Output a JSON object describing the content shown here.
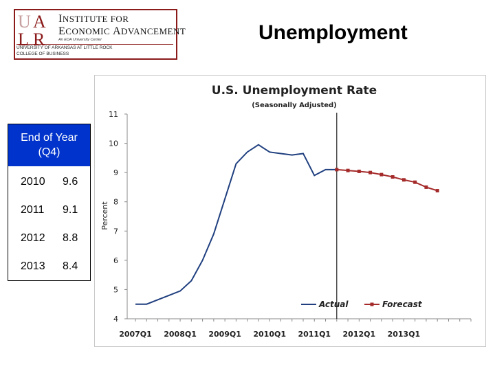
{
  "logo": {
    "line1_big": "I",
    "line1_rest": "NSTITUTE FOR",
    "line2_big1": "E",
    "line2_rest1": "CONOMIC ",
    "line2_big2": "A",
    "line2_rest2": "DVANCEMENT",
    "tagline": "An EDA University Center",
    "line3": "UNIVERSITY OF ARKANSAS AT LITTLE ROCK",
    "line4": "COLLEGE OF BUSINESS",
    "mark_letters": [
      "U",
      "A",
      "L",
      "R"
    ],
    "brand_color": "#8b1a1a"
  },
  "slide_title": "Unemployment",
  "table": {
    "header_line1": "End of Year",
    "header_line2": "(Q4)",
    "header_color": "#0033cc",
    "rows": [
      {
        "year": "2010",
        "value": "9.6"
      },
      {
        "year": "2011",
        "value": "9.1"
      },
      {
        "year": "2012",
        "value": "8.8"
      },
      {
        "year": "2013",
        "value": "8.4"
      }
    ]
  },
  "chart_data": {
    "type": "line",
    "title": "U.S. Unemployment Rate",
    "subtitle": "(Seasonally Adjusted)",
    "ylabel": "Percent",
    "ylim": [
      4,
      11
    ],
    "yticks": [
      4,
      5,
      6,
      7,
      8,
      9,
      10,
      11
    ],
    "x_tick_labels": [
      "2007Q1",
      "2008Q1",
      "2009Q1",
      "2010Q1",
      "2011Q1",
      "2012Q1",
      "2013Q1"
    ],
    "x_start_index": 0,
    "forecast_start_label": "2011Q3",
    "legend_position": "bottom-right",
    "series": [
      {
        "name": "Actual",
        "color": "#1f3f7f",
        "x": [
          0,
          1,
          2,
          3,
          4,
          5,
          6,
          7,
          8,
          9,
          10,
          11,
          12,
          13,
          14,
          15,
          16,
          17,
          18
        ],
        "values": [
          4.5,
          4.5,
          4.65,
          4.8,
          4.95,
          5.3,
          6.0,
          6.9,
          8.1,
          9.3,
          9.7,
          9.95,
          9.7,
          9.65,
          9.6,
          9.65,
          8.9,
          9.1,
          9.1
        ]
      },
      {
        "name": "Forecast",
        "color": "#a52a2a",
        "x": [
          18,
          19,
          20,
          21,
          22,
          23,
          24,
          25,
          26,
          27
        ],
        "values": [
          9.1,
          9.07,
          9.04,
          9.0,
          8.93,
          8.85,
          8.75,
          8.67,
          8.5,
          8.38
        ]
      }
    ]
  }
}
